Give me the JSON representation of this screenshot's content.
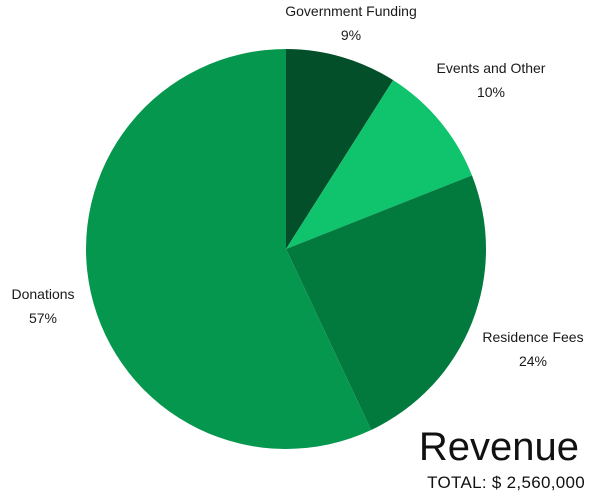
{
  "chart_data": {
    "type": "pie",
    "title": "Revenue",
    "subtitle": "TOTAL: $ 2,560,000",
    "slices": [
      {
        "label": "Government Funding",
        "value": 9,
        "percent_label": "9%",
        "color": "#024f2a"
      },
      {
        "label": "Events and Other",
        "value": 10,
        "percent_label": "10%",
        "color": "#0fc46d"
      },
      {
        "label": "Residence Fees",
        "value": 24,
        "percent_label": "24%",
        "color": "#027a3e"
      },
      {
        "label": "Donations",
        "value": 57,
        "percent_label": "57%",
        "color": "#06974e"
      }
    ],
    "start_angle_deg": 0,
    "direction": "clockwise",
    "legend": "none"
  }
}
